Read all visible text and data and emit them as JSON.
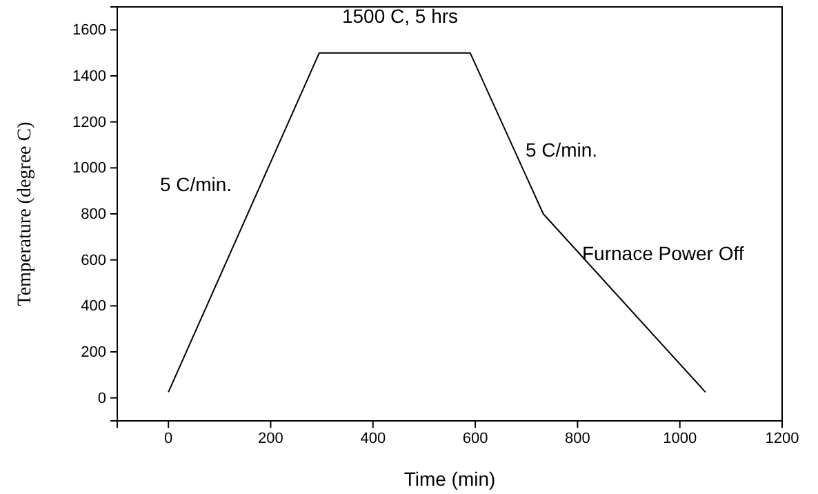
{
  "chart_data": {
    "type": "line",
    "xlabel": "Time (min)",
    "ylabel": "Temperature (degree C)",
    "x": [
      0,
      295,
      590,
      733,
      1050
    ],
    "series": [
      {
        "color": "#000000",
        "values": [
          25,
          1500,
          1500,
          800,
          25
        ]
      }
    ],
    "xlim": [
      -100,
      1200
    ],
    "xticks": [
      0,
      200,
      400,
      600,
      800,
      1000,
      1200
    ],
    "ylim": [
      -100,
      1700
    ],
    "yticks": [
      0,
      200,
      400,
      600,
      800,
      1000,
      1200,
      1400,
      1600
    ],
    "grid": false,
    "marker": "none",
    "line_style": "solid",
    "annotations": [
      "1500 C, 5 hrs",
      "5 C/min.",
      "5 C/min.",
      "Furnace Power Off"
    ]
  }
}
